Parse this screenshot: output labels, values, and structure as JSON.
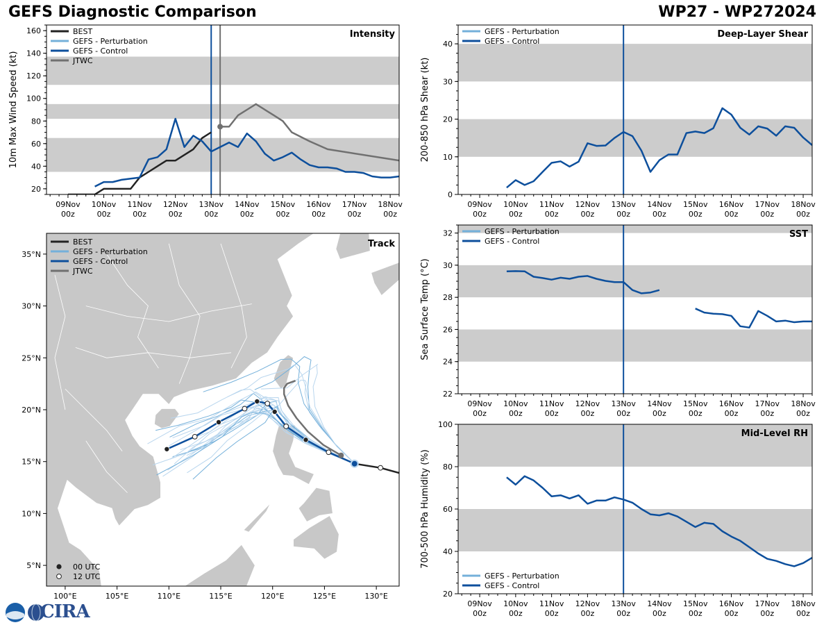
{
  "header": {
    "title_left": "GEFS Diagnostic Comparison",
    "title_right": "WP27 - WP272024"
  },
  "logo": {
    "text": "CIRA"
  },
  "colors": {
    "best": "#222222",
    "pert": "#74b0da",
    "pert_faint": "#b9d6ee",
    "control": "#0d4f9c",
    "jtwc": "#707070",
    "band": "#cccccc",
    "land": "#c8c8c8"
  },
  "time_axis": {
    "labels": [
      [
        "09Nov",
        "00z"
      ],
      [
        "10Nov",
        "00z"
      ],
      [
        "11Nov",
        "00z"
      ],
      [
        "12Nov",
        "00z"
      ],
      [
        "13Nov",
        "00z"
      ],
      [
        "14Nov",
        "00z"
      ],
      [
        "15Nov",
        "00z"
      ],
      [
        "16Nov",
        "00z"
      ],
      [
        "17Nov",
        "00z"
      ],
      [
        "18Nov",
        "00z"
      ]
    ],
    "start_day": 8.4,
    "end_day": 18.25,
    "first_label_day": 9,
    "current_day": 13.0
  },
  "legends": {
    "intensity": [
      "BEST",
      "GEFS - Perturbation",
      "GEFS - Control",
      "JTWC"
    ],
    "shear": [
      "GEFS - Perturbation",
      "GEFS - Control"
    ],
    "sst": [
      "GEFS - Perturbation",
      "GEFS - Control"
    ],
    "rh": [
      "GEFS - Perturbation",
      "GEFS - Control"
    ],
    "track": [
      "BEST",
      "GEFS - Perturbation",
      "GEFS - Control",
      "JTWC"
    ],
    "track_markers": [
      "00 UTC",
      "12 UTC"
    ]
  },
  "chart_data": [
    {
      "id": "intensity",
      "type": "line",
      "title": "Intensity",
      "xlabel": "",
      "ylabel": "10m Max Wind Speed (kt)",
      "ylim": [
        15,
        165
      ],
      "yticks": [
        20,
        40,
        60,
        80,
        100,
        120,
        140,
        160
      ],
      "bands": [
        [
          35,
          65
        ],
        [
          82,
          95
        ],
        [
          112,
          137
        ]
      ],
      "jtwc_init_day": 13.25,
      "series": [
        {
          "name": "BEST",
          "x": [
            9.0,
            9.25,
            9.5,
            9.75,
            10.0,
            10.25,
            10.5,
            10.75,
            11.0,
            11.25,
            11.5,
            11.75,
            12.0,
            12.25,
            12.5,
            12.75,
            13.0
          ],
          "y": [
            15,
            15,
            15,
            15,
            20,
            20,
            20,
            20,
            30,
            35,
            40,
            45,
            45,
            50,
            55,
            65,
            70
          ]
        },
        {
          "name": "GEFS - Control",
          "x": [
            9.75,
            10.0,
            10.25,
            10.5,
            10.75,
            11.0,
            11.25,
            11.5,
            11.75,
            12.0,
            12.25,
            12.5,
            12.75,
            13.0,
            13.25,
            13.5,
            13.75,
            14.0,
            14.25,
            14.5,
            14.75,
            15.0,
            15.25,
            15.5,
            15.75,
            16.0,
            16.25,
            16.5,
            16.75,
            17.0,
            17.25,
            17.5,
            17.75,
            18.0,
            18.25
          ],
          "y": [
            22,
            26,
            26,
            28,
            29,
            30,
            46,
            48,
            55,
            82,
            57,
            67,
            62,
            53,
            57,
            61,
            57,
            69,
            62,
            51,
            45,
            48,
            52,
            46,
            41,
            39,
            39,
            38,
            35,
            35,
            34,
            31,
            30,
            30,
            31
          ]
        },
        {
          "name": "JTWC",
          "x": [
            13.25,
            13.5,
            13.75,
            14.0,
            14.25,
            14.5,
            14.75,
            15.0,
            15.25,
            15.75,
            16.25,
            18.25
          ],
          "y": [
            75,
            75,
            85,
            90,
            95,
            90,
            85,
            80,
            70,
            62,
            55,
            45
          ]
        }
      ]
    },
    {
      "id": "shear",
      "type": "line",
      "title": "Deep-Layer Shear",
      "xlabel": "",
      "ylabel": "200-850 hPa Shear (kt)",
      "ylim": [
        0,
        45
      ],
      "yticks": [
        0,
        10,
        20,
        30,
        40
      ],
      "bands": [
        [
          10,
          20
        ],
        [
          30,
          40
        ]
      ],
      "series": [
        {
          "name": "GEFS - Control",
          "x": [
            9.75,
            10.0,
            10.25,
            10.5,
            10.75,
            11.0,
            11.25,
            11.5,
            11.75,
            12.0,
            12.25,
            12.5,
            12.75,
            13.0,
            13.25,
            13.5,
            13.75,
            14.0,
            14.25,
            14.5,
            14.75,
            15.0,
            15.25,
            15.5,
            15.75,
            16.0,
            16.25,
            16.5,
            16.75,
            17.0,
            17.25,
            17.5,
            17.75,
            18.0,
            18.25
          ],
          "y": [
            1.8,
            3.8,
            2.5,
            3.5,
            6,
            8.4,
            8.8,
            7.4,
            8.7,
            13.6,
            12.9,
            13,
            15,
            16.6,
            15.5,
            11.6,
            6,
            9.1,
            10.6,
            10.6,
            16.3,
            16.7,
            16.3,
            17.6,
            22.9,
            21.2,
            17.7,
            15.9,
            18.1,
            17.5,
            15.6,
            18.1,
            17.7,
            15.1,
            13.1
          ]
        }
      ]
    },
    {
      "id": "sst",
      "type": "line",
      "title": "SST",
      "xlabel": "",
      "ylabel": "Sea Surface Temp (°C)",
      "ylim": [
        22,
        32.5
      ],
      "yticks": [
        22,
        24,
        26,
        28,
        30,
        32
      ],
      "bands": [
        [
          24,
          26
        ],
        [
          28,
          30
        ],
        [
          32,
          32.5
        ]
      ],
      "series": [
        {
          "name": "GEFS - Control (pre)",
          "x": [
            9.75,
            10.0,
            10.25,
            10.5,
            10.75,
            11.0,
            11.25,
            11.5,
            11.75,
            12.0,
            12.25,
            12.5,
            12.75,
            13.0
          ],
          "y": [
            29.62,
            29.63,
            29.62,
            29.28,
            29.2,
            29.1,
            29.22,
            29.15,
            29.28,
            29.33,
            29.15,
            29.02,
            28.95,
            28.95
          ]
        },
        {
          "name": "GEFS - Control (fcst)",
          "x": [
            13.0,
            13.25,
            13.5,
            13.75,
            14.0
          ],
          "y": [
            28.95,
            28.45,
            28.25,
            28.3,
            28.45
          ]
        },
        {
          "name": "GEFS - Control (late)",
          "x": [
            15.0,
            15.25,
            15.5,
            15.75,
            16.0,
            16.25,
            16.5,
            16.75,
            17.0,
            17.25,
            17.5,
            17.75,
            18.0,
            18.25
          ],
          "y": [
            27.3,
            27.05,
            26.98,
            26.95,
            26.85,
            26.2,
            26.12,
            27.15,
            26.85,
            26.5,
            26.55,
            26.45,
            26.5,
            26.5
          ]
        }
      ]
    },
    {
      "id": "rh",
      "type": "line",
      "title": "Mid-Level RH",
      "xlabel": "",
      "ylabel": "700-500 hPa Humidity (%)",
      "ylim": [
        20,
        100
      ],
      "yticks": [
        20,
        40,
        60,
        80,
        100
      ],
      "bands": [
        [
          40,
          60
        ],
        [
          80,
          100
        ]
      ],
      "series": [
        {
          "name": "GEFS - Control",
          "x": [
            9.75,
            10.0,
            10.25,
            10.5,
            10.75,
            11.0,
            11.25,
            11.5,
            11.75,
            12.0,
            12.25,
            12.5,
            12.75,
            13.0,
            13.25,
            13.5,
            13.75,
            14.0,
            14.25,
            14.5,
            14.75,
            15.0,
            15.25,
            15.5,
            15.75,
            16.0,
            16.25,
            16.5,
            16.75,
            17.0,
            17.25,
            17.5,
            17.75,
            18.0,
            18.25
          ],
          "y": [
            75,
            71.5,
            75.5,
            73.5,
            70,
            66,
            66.5,
            65,
            66.5,
            62.5,
            64,
            64,
            65.5,
            64.5,
            63,
            60,
            57.5,
            57,
            58,
            56.5,
            54,
            51.5,
            53.5,
            53,
            49.5,
            47,
            45,
            42,
            39,
            36.5,
            35.5,
            34,
            33,
            34.5,
            37
          ]
        }
      ]
    },
    {
      "id": "track",
      "type": "scatter",
      "title": "Track",
      "xlabel": "",
      "ylabel": "",
      "xlim": [
        98.2,
        132.2
      ],
      "ylim": [
        3.0,
        37.0
      ],
      "xticks": [
        100,
        105,
        110,
        115,
        120,
        125,
        130
      ],
      "yticks": [
        5,
        10,
        15,
        20,
        25,
        30,
        35
      ],
      "xtick_labels": [
        "100°E",
        "105°E",
        "110°E",
        "115°E",
        "120°E",
        "125°E",
        "130°E"
      ],
      "ytick_labels": [
        "5°N",
        "10°N",
        "15°N",
        "20°N",
        "25°N",
        "30°N",
        "35°N"
      ],
      "series": [
        {
          "name": "BEST",
          "lon": [
            132.2,
            130.4,
            127.9
          ],
          "lat": [
            13.9,
            14.4,
            14.8
          ]
        },
        {
          "name": "GEFS - Control",
          "lon": [
            127.9,
            125.4,
            123.2,
            121.3,
            120.2,
            119.5,
            118.5,
            117.3,
            114.8,
            112.5,
            109.8
          ],
          "lat": [
            14.8,
            15.9,
            17.1,
            18.4,
            19.8,
            20.6,
            20.8,
            20.1,
            18.8,
            17.4,
            16.2
          ]
        },
        {
          "name": "JTWC",
          "lon": [
            126.6,
            124.9,
            123.4,
            122.3,
            121.5,
            121.1,
            121.1,
            121.4,
            122.2
          ],
          "lat": [
            15.6,
            16.6,
            17.9,
            19.2,
            20.4,
            21.5,
            22.1,
            22.5,
            22.8
          ]
        }
      ],
      "markers_00utc": {
        "lon": [
          109.8,
          114.8,
          118.5,
          120.2,
          123.2,
          127.9
        ],
        "lat": [
          16.2,
          18.8,
          20.8,
          19.8,
          17.1,
          14.8
        ]
      },
      "markers_12utc": {
        "lon": [
          112.5,
          117.3,
          119.5,
          121.3,
          125.4,
          130.4
        ],
        "lat": [
          17.4,
          20.1,
          20.6,
          18.4,
          15.9,
          14.4
        ]
      }
    }
  ]
}
